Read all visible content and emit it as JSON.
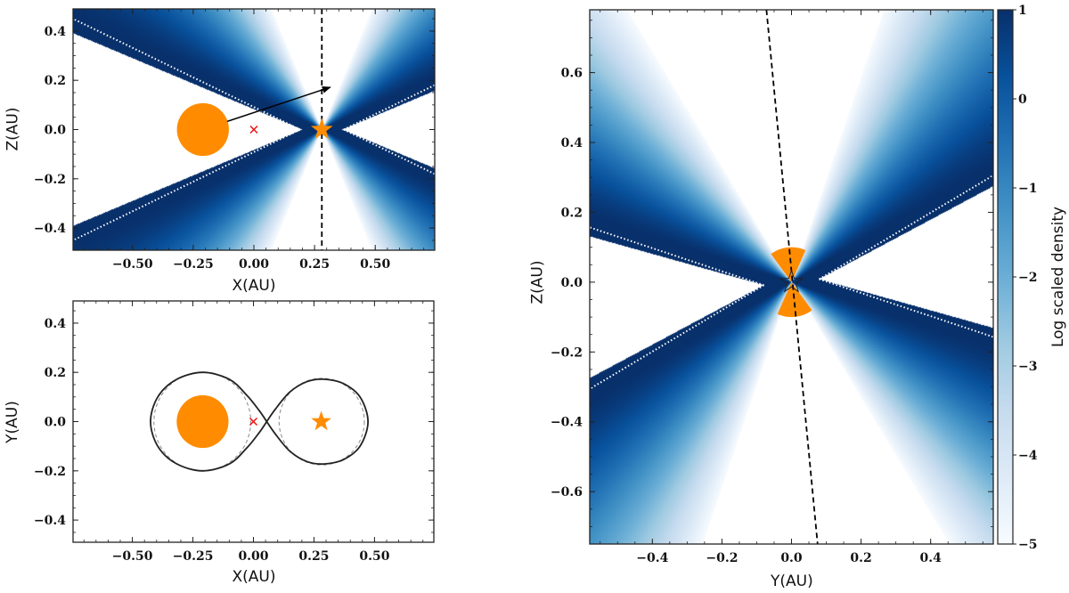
{
  "chart_data": [
    {
      "panel": "top-left",
      "type": "heatmap",
      "title": "",
      "xlabel": "X(AU)",
      "ylabel": "Z(AU)",
      "xlim": [
        -0.745,
        0.745
      ],
      "ylim": [
        -0.49,
        0.49
      ],
      "xticks": [
        -0.5,
        -0.25,
        0,
        0.25,
        0.5
      ],
      "xticklabels": [
        "−0.50",
        "−0.25",
        "0.00",
        "0.25",
        "0.50"
      ],
      "yticks": [
        -0.4,
        -0.2,
        0,
        0.2,
        0.4
      ],
      "yticklabels": [
        "−0.4",
        "−0.2",
        "0.0",
        "0.2",
        "0.4"
      ],
      "minor_step": 0.05,
      "grid": false,
      "outflow": {
        "star_x": 0.28,
        "apex_left": 0.2,
        "apex_right": 0.365,
        "hollow_half_angle_deg": 22.5,
        "dotted_angle_deg": 25.7,
        "fade_start_deg": 24,
        "fade_end_deg": 67
      },
      "companion": {
        "x": -0.21,
        "y": 0,
        "radius": 0.107
      },
      "center_of_mass": {
        "x": 0,
        "y": 0
      },
      "star": {
        "x": 0.28,
        "y": 0
      },
      "arrow": {
        "from": [
          -0.11,
          0.033
        ],
        "to": [
          0.315,
          0.172
        ]
      },
      "dashed_line_x": 0.28
    },
    {
      "panel": "bottom-left",
      "type": "scatter",
      "xlabel": "X(AU)",
      "ylabel": "Y(AU)",
      "xlim": [
        -0.745,
        0.745
      ],
      "ylim": [
        -0.49,
        0.49
      ],
      "xticks": [
        -0.5,
        -0.25,
        0,
        0.25,
        0.5
      ],
      "xticklabels": [
        "−0.50",
        "−0.25",
        "0.00",
        "0.25",
        "0.50"
      ],
      "yticks": [
        -0.4,
        -0.2,
        0,
        0.2,
        0.4
      ],
      "yticklabels": [
        "−0.4",
        "−0.2",
        "0.0",
        "0.2",
        "0.4"
      ],
      "minor_step": 0.05,
      "grid": false,
      "companion": {
        "x": -0.21,
        "y": 0,
        "radius": 0.107
      },
      "center_of_mass": {
        "x": 0,
        "y": 0
      },
      "star": {
        "x": 0.28,
        "y": 0
      },
      "roche_lobe_left": [
        [
          0.055,
          0
        ],
        [
          0.02,
          0.05
        ],
        [
          -0.03,
          0.11
        ],
        [
          -0.1,
          0.172
        ],
        [
          -0.21,
          0.2
        ],
        [
          -0.32,
          0.17
        ],
        [
          -0.395,
          0.1
        ],
        [
          -0.425,
          0
        ],
        [
          -0.395,
          -0.1
        ],
        [
          -0.32,
          -0.17
        ],
        [
          -0.21,
          -0.2
        ],
        [
          -0.1,
          -0.172
        ],
        [
          -0.03,
          -0.11
        ],
        [
          0.02,
          -0.05
        ],
        [
          0.055,
          0
        ]
      ],
      "roche_lobe_right": [
        [
          0.055,
          0
        ],
        [
          0.09,
          0.05
        ],
        [
          0.15,
          0.12
        ],
        [
          0.22,
          0.162
        ],
        [
          0.29,
          0.172
        ],
        [
          0.37,
          0.155
        ],
        [
          0.44,
          0.1
        ],
        [
          0.473,
          0
        ],
        [
          0.44,
          -0.1
        ],
        [
          0.37,
          -0.155
        ],
        [
          0.29,
          -0.172
        ],
        [
          0.22,
          -0.162
        ],
        [
          0.15,
          -0.12
        ],
        [
          0.09,
          -0.05
        ],
        [
          0.055,
          0
        ]
      ],
      "dashed_circles": [
        {
          "x": -0.211,
          "y": 0,
          "radius": 0.2
        },
        {
          "x": 0.282,
          "y": 0,
          "radius": 0.176
        }
      ]
    },
    {
      "panel": "right",
      "type": "heatmap",
      "xlabel": "Y(AU)",
      "ylabel": "Z(AU)",
      "xlim": [
        -0.58,
        0.58
      ],
      "ylim": [
        -0.75,
        0.78
      ],
      "xticks": [
        -0.4,
        -0.2,
        0,
        0.2,
        0.4
      ],
      "xticklabels": [
        "−0.4",
        "−0.2",
        "0.0",
        "0.2",
        "0.4"
      ],
      "yticks": [
        -0.6,
        -0.4,
        -0.2,
        0,
        0.2,
        0.4,
        0.6
      ],
      "yticklabels": [
        "−0.6",
        "−0.4",
        "−0.2",
        "0.0",
        "0.2",
        "0.4",
        "0.6"
      ],
      "minor_step": 0.05,
      "grid": false,
      "outflow": {
        "tilt_deg": 6.2,
        "apex_offset": 0.08,
        "hollow_half_angle_deg": 21.8,
        "dotted_angle_deg": 24.5,
        "fade_start_deg": 23,
        "fade_end_deg": 65
      },
      "sector": {
        "radius": 0.1,
        "half_angle_deg": 30
      },
      "star": {
        "x": 0,
        "y": 0
      },
      "dashed_line": {
        "from": [
          -0.072,
          0.78
        ],
        "to": [
          0.075,
          -0.75
        ]
      }
    }
  ],
  "colorbar": {
    "label": "Log scaled density",
    "range": [
      -5,
      1
    ],
    "ticks": [
      1,
      0,
      -1,
      -2,
      -3,
      -4,
      -5
    ],
    "ticklabels": [
      "1",
      "0",
      "−1",
      "−2",
      "−3",
      "−4",
      "−5"
    ],
    "cmap": "Blues"
  },
  "colors": {
    "orange": "#ff8c00",
    "red": "#ee1111",
    "cmap_stops": [
      "#f7fbff",
      "#deebf7",
      "#c6dbef",
      "#9ecae1",
      "#6baed6",
      "#4292c6",
      "#2171b5",
      "#08519c",
      "#08306b"
    ]
  }
}
